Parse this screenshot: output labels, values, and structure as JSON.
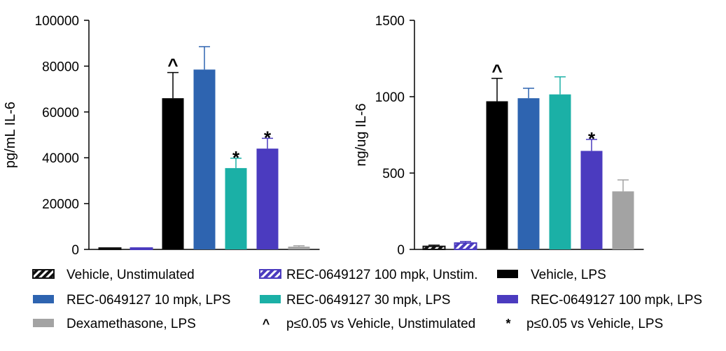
{
  "chart_data": [
    {
      "type": "bar",
      "title": "",
      "xlabel": "",
      "ylabel": "pg/mL IL-6",
      "ylim": [
        0,
        100000
      ],
      "yticks": [
        0,
        20000,
        40000,
        60000,
        80000,
        100000
      ],
      "ytick_labels": [
        "0",
        "20000",
        "40000",
        "60000",
        "80000",
        "100000"
      ],
      "series": [
        {
          "name": "Vehicle, Unstimulated",
          "value": 300,
          "error": 0,
          "color": "#111111",
          "pattern": "stripe",
          "annotation": ""
        },
        {
          "name": "REC-0649127 100 mpk, Unstim.",
          "value": 400,
          "error": 0,
          "color": "#4b3bbf",
          "pattern": "stripe",
          "annotation": ""
        },
        {
          "name": "Vehicle, LPS",
          "value": 66000,
          "error": 11200,
          "color": "#000000",
          "pattern": "solid",
          "annotation": "^"
        },
        {
          "name": "REC-0649127 10 mpk, LPS",
          "value": 78500,
          "error": 10000,
          "color": "#2e64b0",
          "pattern": "solid",
          "annotation": ""
        },
        {
          "name": "REC-0649127 30 mpk, LPS",
          "value": 35500,
          "error": 4300,
          "color": "#1bb0a6",
          "pattern": "solid",
          "annotation": "*"
        },
        {
          "name": "REC-0649127 100 mpk, LPS",
          "value": 44000,
          "error": 4500,
          "color": "#4b3bbf",
          "pattern": "solid",
          "annotation": "*"
        },
        {
          "name": "Dexamethasone, LPS",
          "value": 1200,
          "error": 400,
          "color": "#a3a3a3",
          "pattern": "solid",
          "annotation": ""
        }
      ]
    },
    {
      "type": "bar",
      "title": "",
      "xlabel": "",
      "ylabel": "ng/ug IL-6",
      "ylim": [
        0,
        1500
      ],
      "yticks": [
        0,
        500,
        1000,
        1500
      ],
      "ytick_labels": [
        "0",
        "500",
        "1000",
        "1500"
      ],
      "series": [
        {
          "name": "Vehicle, Unstimulated",
          "value": 20,
          "error": 8,
          "color": "#111111",
          "pattern": "stripe",
          "annotation": ""
        },
        {
          "name": "REC-0649127 100 mpk, Unstim.",
          "value": 42,
          "error": 10,
          "color": "#4b3bbf",
          "pattern": "stripe",
          "annotation": ""
        },
        {
          "name": "Vehicle, LPS",
          "value": 970,
          "error": 150,
          "color": "#000000",
          "pattern": "solid",
          "annotation": "^"
        },
        {
          "name": "REC-0649127 10 mpk, LPS",
          "value": 990,
          "error": 65,
          "color": "#2e64b0",
          "pattern": "solid",
          "annotation": ""
        },
        {
          "name": "REC-0649127 30 mpk, LPS",
          "value": 1015,
          "error": 115,
          "color": "#1bb0a6",
          "pattern": "solid",
          "annotation": ""
        },
        {
          "name": "REC-0649127 100 mpk, LPS",
          "value": 645,
          "error": 75,
          "color": "#4b3bbf",
          "pattern": "solid",
          "annotation": "*"
        },
        {
          "name": "Dexamethasone, LPS",
          "value": 380,
          "error": 75,
          "color": "#a3a3a3",
          "pattern": "solid",
          "annotation": ""
        }
      ]
    }
  ],
  "legend": {
    "items": [
      {
        "label": "Vehicle, Unstimulated",
        "color": "#111111",
        "pattern": "stripe"
      },
      {
        "label": "REC-0649127 100 mpk, Unstim.",
        "color": "#4b3bbf",
        "pattern": "stripe"
      },
      {
        "label": "Vehicle, LPS",
        "color": "#000000",
        "pattern": "solid"
      },
      {
        "label": "REC-0649127 10 mpk, LPS",
        "color": "#2e64b0",
        "pattern": "solid"
      },
      {
        "label": "REC-0649127 30 mpk, LPS",
        "color": "#1bb0a6",
        "pattern": "solid"
      },
      {
        "label": "REC-0649127 100 mpk, LPS",
        "color": "#4b3bbf",
        "pattern": "solid"
      },
      {
        "label": "Dexamethasone, LPS",
        "color": "#a3a3a3",
        "pattern": "solid"
      }
    ],
    "notes": [
      {
        "symbol": "^",
        "label": "p≤0.05 vs Vehicle, Unstimulated"
      },
      {
        "symbol": "*",
        "label": "p≤0.05 vs Vehicle, LPS"
      }
    ]
  }
}
